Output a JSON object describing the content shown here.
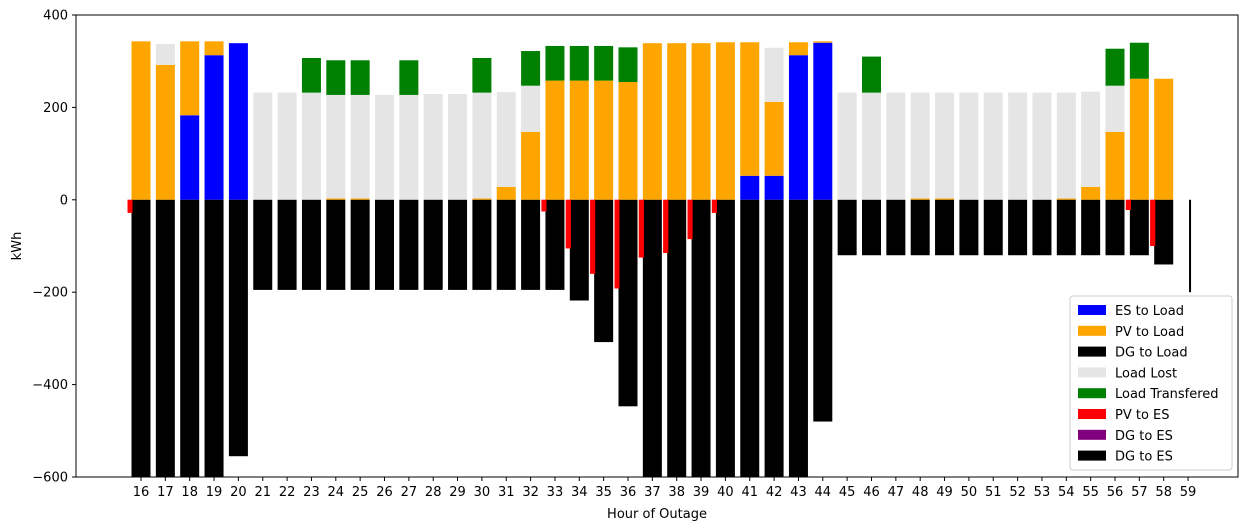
{
  "chart_data": {
    "type": "bar",
    "stacked": true,
    "title": "",
    "xlabel": "Hour of Outage",
    "ylabel": "kWh",
    "ylim": [
      -600,
      400
    ],
    "yticks": [
      400,
      200,
      0,
      -200,
      -400,
      -600
    ],
    "legend_position": "lower-right",
    "grid": false,
    "categories": [
      "16",
      "17",
      "18",
      "19",
      "20",
      "21",
      "22",
      "23",
      "24",
      "25",
      "26",
      "27",
      "28",
      "29",
      "30",
      "31",
      "32",
      "33",
      "34",
      "35",
      "36",
      "37",
      "38",
      "39",
      "40",
      "41",
      "42",
      "43",
      "44",
      "45",
      "46",
      "47",
      "48",
      "49",
      "50",
      "51",
      "52",
      "53",
      "54",
      "55",
      "56",
      "57",
      "58",
      "59"
    ],
    "positive_series": [
      {
        "name": "ES to Load",
        "color": "#0000ff",
        "values": [
          0,
          0,
          183,
          313,
          339,
          0,
          0,
          0,
          0,
          0,
          0,
          0,
          0,
          0,
          0,
          0,
          0,
          0,
          0,
          0,
          0,
          0,
          0,
          0,
          0,
          52,
          52,
          313,
          340,
          0,
          0,
          0,
          0,
          0,
          0,
          0,
          0,
          0,
          0,
          0,
          0,
          0,
          0,
          0
        ]
      },
      {
        "name": "PV to Load",
        "color": "#ffa500",
        "values": [
          343,
          292,
          160,
          30,
          0,
          0,
          0,
          0,
          3,
          3,
          0,
          0,
          0,
          0,
          3,
          28,
          147,
          258,
          258,
          258,
          255,
          339,
          339,
          339,
          341,
          289,
          160,
          28,
          3,
          0,
          0,
          0,
          3,
          3,
          0,
          0,
          0,
          0,
          3,
          28,
          147,
          262,
          262,
          0
        ]
      },
      {
        "name": "Load Lost",
        "color": "#e5e5e5",
        "values": [
          0,
          45,
          0,
          0,
          0,
          232,
          232,
          232,
          224,
          224,
          227,
          227,
          229,
          229,
          229,
          205,
          100,
          0,
          0,
          0,
          0,
          0,
          0,
          0,
          0,
          0,
          117,
          0,
          0,
          232,
          232,
          232,
          229,
          229,
          232,
          232,
          232,
          232,
          229,
          206,
          100,
          0,
          0,
          0
        ]
      },
      {
        "name": "Load Transfered",
        "color": "#008000",
        "values": [
          0,
          0,
          0,
          0,
          0,
          0,
          0,
          75,
          75,
          75,
          0,
          75,
          0,
          0,
          75,
          0,
          75,
          75,
          75,
          75,
          75,
          0,
          0,
          0,
          0,
          0,
          0,
          0,
          0,
          0,
          78,
          0,
          0,
          0,
          0,
          0,
          0,
          0,
          0,
          0,
          80,
          78,
          0,
          0
        ]
      }
    ],
    "negative_series": [
      {
        "name": "DG to Load",
        "color": "#000000",
        "values": [
          -600,
          -600,
          -600,
          -600,
          -555,
          -195,
          -195,
          -195,
          -195,
          -195,
          -195,
          -195,
          -195,
          -195,
          -195,
          -195,
          -195,
          -195,
          -218,
          -308,
          -447,
          -600,
          -600,
          -600,
          -600,
          -600,
          -600,
          -600,
          -480,
          -120,
          -120,
          -120,
          -120,
          -120,
          -120,
          -120,
          -120,
          -120,
          -120,
          -120,
          -120,
          -120,
          -140,
          0
        ]
      },
      {
        "name": "PV to ES",
        "color": "#ff0000",
        "values": [
          -28,
          0,
          0,
          0,
          0,
          0,
          0,
          0,
          0,
          0,
          0,
          0,
          0,
          0,
          0,
          0,
          0,
          -25,
          -105,
          -160,
          -192,
          -125,
          -115,
          -85,
          -28,
          0,
          0,
          0,
          0,
          0,
          0,
          0,
          0,
          0,
          0,
          0,
          0,
          0,
          0,
          0,
          0,
          -22,
          -100,
          0
        ]
      },
      {
        "name": "DG to ES",
        "color": "#800080",
        "values": [
          0,
          0,
          0,
          0,
          0,
          0,
          0,
          0,
          0,
          0,
          0,
          0,
          0,
          0,
          0,
          0,
          0,
          0,
          0,
          0,
          0,
          0,
          0,
          0,
          0,
          0,
          0,
          0,
          0,
          0,
          0,
          0,
          0,
          0,
          0,
          0,
          0,
          0,
          0,
          0,
          0,
          0,
          0,
          0
        ]
      },
      {
        "name": "DG to ES",
        "color": "#000000",
        "values": [
          0,
          0,
          0,
          0,
          0,
          0,
          0,
          0,
          0,
          0,
          0,
          0,
          0,
          0,
          0,
          0,
          0,
          0,
          0,
          0,
          0,
          0,
          0,
          0,
          0,
          0,
          0,
          0,
          0,
          0,
          0,
          0,
          0,
          0,
          0,
          0,
          0,
          0,
          0,
          0,
          0,
          0,
          0,
          -200
        ]
      }
    ]
  }
}
